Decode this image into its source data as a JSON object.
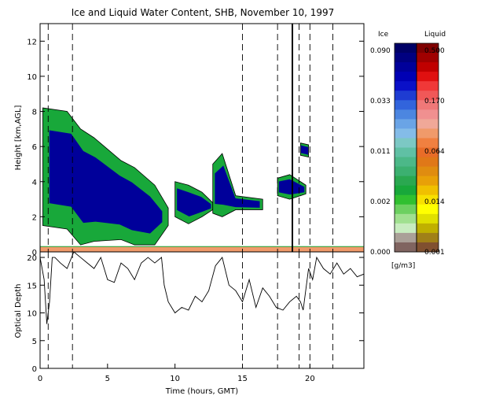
{
  "chart_data": [
    {
      "type": "heatmap",
      "title": "Ice and Liquid Water Content, SHB, November 10, 1997",
      "xlabel": "",
      "ylabel": "Height [km,AGL]",
      "xlim": [
        0,
        24
      ],
      "ylim": [
        0,
        13
      ],
      "yticks": [
        0,
        2,
        4,
        6,
        8,
        10,
        12
      ],
      "vertical_dashed_lines_hours": [
        0.6,
        2.4,
        15.0,
        17.6,
        19.2,
        20.0,
        21.7
      ],
      "vertical_solid_lines_hours": [
        18.7
      ],
      "cloud_regions": [
        {
          "x": [
            0.2,
            2.0,
            3.0,
            4.0,
            6.0,
            7.0,
            8.5,
            9.5
          ],
          "top_km": [
            8.2,
            8.0,
            7.0,
            6.5,
            5.2,
            4.8,
            3.8,
            2.5
          ],
          "base_km": [
            1.5,
            1.3,
            0.4,
            0.6,
            0.7,
            0.4,
            0.4,
            1.5
          ],
          "phase": "ice"
        },
        {
          "x": [
            10.0,
            11.0,
            12.0,
            12.8
          ],
          "top_km": [
            4.0,
            3.8,
            3.4,
            2.8
          ],
          "base_km": [
            2.0,
            1.6,
            2.0,
            2.4
          ],
          "phase": "ice"
        },
        {
          "x": [
            12.8,
            13.5,
            14.5,
            16.5
          ],
          "top_km": [
            5.0,
            5.6,
            3.2,
            3.0
          ],
          "base_km": [
            2.2,
            2.0,
            2.4,
            2.4
          ],
          "phase": "ice"
        },
        {
          "x": [
            17.6,
            18.5,
            19.7
          ],
          "top_km": [
            4.2,
            4.4,
            3.8
          ],
          "base_km": [
            3.2,
            3.0,
            3.3
          ],
          "phase": "ice"
        },
        {
          "x": [
            19.3,
            19.9
          ],
          "top_km": [
            6.2,
            6.1
          ],
          "base_km": [
            5.5,
            5.4
          ],
          "phase": "ice"
        },
        {
          "x": [
            0.0,
            24.0
          ],
          "top_km": [
            0.3,
            0.3
          ],
          "base_km": [
            0.0,
            0.0
          ],
          "phase": "liquid"
        }
      ]
    },
    {
      "type": "line",
      "xlabel": "Time (hours, GMT)",
      "ylabel": "Optical Depth",
      "xlim": [
        0,
        24
      ],
      "ylim": [
        0,
        21
      ],
      "xticks": [
        0,
        5,
        10,
        15,
        20
      ],
      "yticks": [
        0,
        5,
        10,
        15,
        20
      ],
      "series": [
        {
          "x": [
            0,
            0.3,
            0.5,
            0.7,
            0.9,
            1.1,
            1.5,
            2.0,
            2.5,
            3.0,
            3.5,
            4.0,
            4.5,
            5.0,
            5.5,
            6.0,
            6.5,
            7.0,
            7.5,
            8.0,
            8.5,
            9.0,
            9.2,
            9.5,
            10.0,
            10.5,
            11.0,
            11.5,
            12.0,
            12.5,
            13.0,
            13.5,
            14.0,
            14.5,
            15.0,
            15.5,
            16.0,
            16.5,
            17.0,
            17.5,
            18.0,
            18.5,
            19.0,
            19.3,
            19.5,
            19.9,
            20.2,
            20.5,
            21.0,
            21.5,
            22.0,
            22.5,
            23.0,
            23.5,
            24.0
          ],
          "values": [
            20,
            16,
            8,
            12,
            20,
            20,
            19,
            18,
            21,
            20,
            19,
            18,
            20,
            16,
            15.5,
            19,
            18,
            16,
            19,
            20,
            19,
            20,
            15,
            12,
            10,
            11,
            10.5,
            13,
            12,
            14,
            18.5,
            20,
            15,
            14,
            12,
            16,
            11,
            14.5,
            13,
            11,
            10.5,
            12,
            13,
            12,
            10.5,
            18,
            16,
            20,
            18,
            17,
            19,
            17,
            18,
            16.5,
            17
          ]
        }
      ]
    }
  ],
  "colorbar": {
    "ice_label": "Ice",
    "liquid_label": "Liquid",
    "units": "[g/m3]",
    "ice_ticks": [
      "0.090",
      "0.033",
      "0.011",
      "0.002",
      "0.000"
    ],
    "liquid_ticks": [
      "0.500",
      "0.170",
      "0.064",
      "0.014",
      "0.001"
    ],
    "ice_colors": [
      "#000066",
      "#000080",
      "#00009a",
      "#0000b4",
      "#0a10c8",
      "#1e3cd2",
      "#3264dc",
      "#4c86e0",
      "#6aa4e6",
      "#84bce8",
      "#7cc8c4",
      "#60c0a4",
      "#4cb888",
      "#3cb070",
      "#2aa850",
      "#18a83a",
      "#30c030",
      "#6cd060",
      "#a0e090",
      "#c8ecc0",
      "#aaa098",
      "#806460"
    ],
    "liquid_colors": [
      "#800000",
      "#a00000",
      "#c00000",
      "#e01010",
      "#f03838",
      "#f05858",
      "#f07878",
      "#f09090",
      "#f0a898",
      "#f09a6a",
      "#f08040",
      "#e86c28",
      "#e07818",
      "#e08c10",
      "#e8a008",
      "#f0c000",
      "#f8e000",
      "#ffff00",
      "#e0e000",
      "#c0b000",
      "#a08018",
      "#805030"
    ]
  }
}
